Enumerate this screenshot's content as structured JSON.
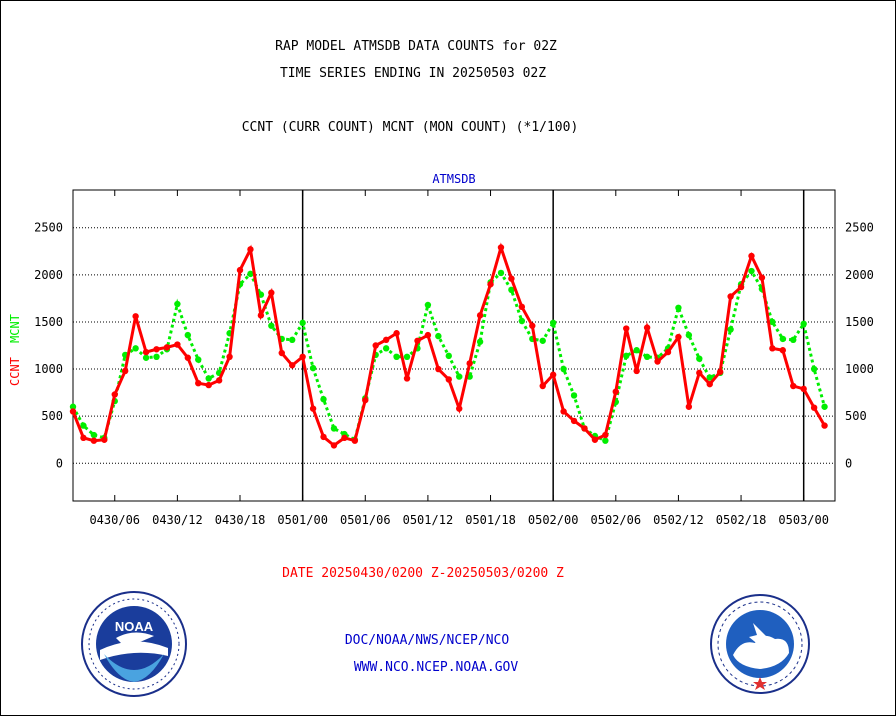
{
  "header": {
    "title_line1": "RAP MODEL ATMSDB DATA COUNTS for 02Z",
    "title_line2": "TIME SERIES ENDING IN 20250503 02Z",
    "subtitle": "CCNT (CURR COUNT) MCNT (MON COUNT) (*1/100)"
  },
  "footer": {
    "date_range": "DATE 20250430/0200 Z-20250503/0200 Z",
    "org_line": "DOC/NOAA/NWS/NCEP/NCO",
    "url_line": "WWW.NCO.NCEP.NOAA.GOV"
  },
  "logos": {
    "left_name": "noaa-logo",
    "left_text": "NOAA",
    "right_name": "national-weather-service-logo"
  },
  "colors": {
    "ccnt": "#ff0000",
    "mcnt": "#00ee00",
    "plot_title": "#0000cc",
    "date_range": "#ff0000",
    "footer_text": "#0000cc"
  },
  "chart_data": {
    "type": "line",
    "plot_title": "ATMSDB",
    "ylabel_ccnt": "CCNT",
    "ylabel_mcnt": "MCNT",
    "ylim": [
      -400,
      2900
    ],
    "yticks": [
      0,
      500,
      1000,
      1500,
      2000,
      2500
    ],
    "ytick_labels": [
      "0",
      "500",
      "1000",
      "1500",
      "2000",
      "2500"
    ],
    "grid": "horizontal dashed",
    "xlim": [
      0,
      73
    ],
    "xticks": [
      4,
      10,
      16,
      22,
      28,
      34,
      40,
      46,
      52,
      58,
      64,
      70
    ],
    "xtick_labels": [
      "0430/06",
      "0430/12",
      "0430/18",
      "0501/00",
      "0501/06",
      "0501/12",
      "0501/18",
      "0502/00",
      "0502/06",
      "0502/12",
      "0502/18",
      "0503/00"
    ],
    "day_dividers": [
      22,
      46,
      70
    ],
    "series": [
      {
        "name": "CCNT",
        "color": "#ff0000",
        "x": [
          0,
          1,
          2,
          3,
          4,
          5,
          6,
          7,
          8,
          9,
          10,
          11,
          12,
          13,
          14,
          15,
          16,
          17,
          18,
          19,
          20,
          21,
          22,
          23,
          24,
          25,
          26,
          27,
          28,
          29,
          30,
          31,
          32,
          33,
          34,
          35,
          36,
          37,
          38,
          39,
          40,
          41,
          42,
          43,
          44,
          45,
          46,
          47,
          48,
          49,
          50,
          51,
          52,
          53,
          54,
          55,
          56,
          57,
          58,
          59,
          60,
          61,
          62,
          63,
          64,
          65,
          66,
          67,
          68,
          69,
          70,
          71,
          72
        ],
        "values": [
          550,
          270,
          240,
          250,
          730,
          980,
          1560,
          1180,
          1210,
          1230,
          1260,
          1120,
          850,
          830,
          880,
          1130,
          2050,
          2270,
          1570,
          1810,
          1170,
          1040,
          1130,
          580,
          280,
          190,
          270,
          240,
          670,
          1250,
          1310,
          1380,
          900,
          1300,
          1360,
          1000,
          890,
          580,
          1060,
          1570,
          1900,
          2290,
          1960,
          1660,
          1460,
          820,
          940,
          550,
          450,
          370,
          250,
          300,
          760,
          1430,
          980,
          1440,
          1080,
          1180,
          1340,
          600,
          960,
          840,
          970,
          1770,
          1870,
          2200,
          1970,
          1220,
          1200,
          820,
          790,
          590,
          400
        ]
      },
      {
        "name": "MCNT",
        "color": "#00ee00",
        "x": [
          0,
          1,
          2,
          3,
          4,
          5,
          6,
          7,
          8,
          9,
          10,
          11,
          12,
          13,
          14,
          15,
          16,
          17,
          18,
          19,
          20,
          21,
          22,
          23,
          24,
          25,
          26,
          27,
          28,
          29,
          30,
          31,
          32,
          33,
          34,
          35,
          36,
          37,
          38,
          39,
          40,
          41,
          42,
          43,
          44,
          45,
          46,
          47,
          48,
          49,
          50,
          51,
          52,
          53,
          54,
          55,
          56,
          57,
          58,
          59,
          60,
          61,
          62,
          63,
          64,
          65,
          66,
          67,
          68,
          69,
          70,
          71,
          72
        ],
        "values": [
          600,
          400,
          300,
          270,
          660,
          1150,
          1220,
          1120,
          1130,
          1210,
          1690,
          1360,
          1100,
          900,
          960,
          1380,
          1900,
          2010,
          1790,
          1460,
          1320,
          1310,
          1490,
          1010,
          680,
          370,
          310,
          250,
          690,
          1150,
          1220,
          1130,
          1130,
          1220,
          1680,
          1350,
          1140,
          920,
          920,
          1290,
          1920,
          2020,
          1840,
          1510,
          1320,
          1300,
          1490,
          1000,
          720,
          370,
          290,
          240,
          650,
          1140,
          1200,
          1130,
          1120,
          1220,
          1650,
          1360,
          1110,
          910,
          960,
          1420,
          1900,
          2040,
          1850,
          1500,
          1320,
          1310,
          1480,
          1000,
          600
        ]
      }
    ]
  }
}
